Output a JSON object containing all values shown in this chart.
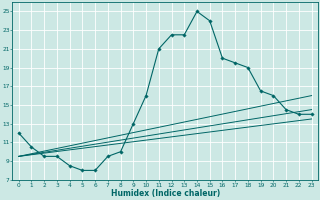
{
  "title": "",
  "xlabel": "Humidex (Indice chaleur)",
  "ylabel": "",
  "bg_color": "#cce8e4",
  "grid_color": "#ffffff",
  "line_color": "#006666",
  "xlim": [
    -0.5,
    23.5
  ],
  "ylim": [
    7,
    26
  ],
  "xticks": [
    0,
    1,
    2,
    3,
    4,
    5,
    6,
    7,
    8,
    9,
    10,
    11,
    12,
    13,
    14,
    15,
    16,
    17,
    18,
    19,
    20,
    21,
    22,
    23
  ],
  "yticks": [
    7,
    9,
    11,
    13,
    15,
    17,
    19,
    21,
    23,
    25
  ],
  "main_series": {
    "x": [
      0,
      1,
      2,
      3,
      4,
      5,
      6,
      7,
      8,
      9,
      10,
      11,
      12,
      13,
      14,
      15,
      16,
      17,
      18,
      19,
      20,
      21,
      22,
      23
    ],
    "y": [
      12,
      10.5,
      9.5,
      9.5,
      8.5,
      8,
      8,
      9.5,
      10,
      13,
      16,
      21,
      22.5,
      22.5,
      25,
      24,
      20,
      19.5,
      19,
      16.5,
      16,
      14.5,
      14,
      14
    ]
  },
  "linear1": {
    "x": [
      0,
      23
    ],
    "y": [
      9.5,
      16
    ]
  },
  "linear2": {
    "x": [
      0,
      23
    ],
    "y": [
      9.5,
      14.5
    ]
  },
  "linear3": {
    "x": [
      0,
      23
    ],
    "y": [
      9.5,
      13.5
    ]
  }
}
